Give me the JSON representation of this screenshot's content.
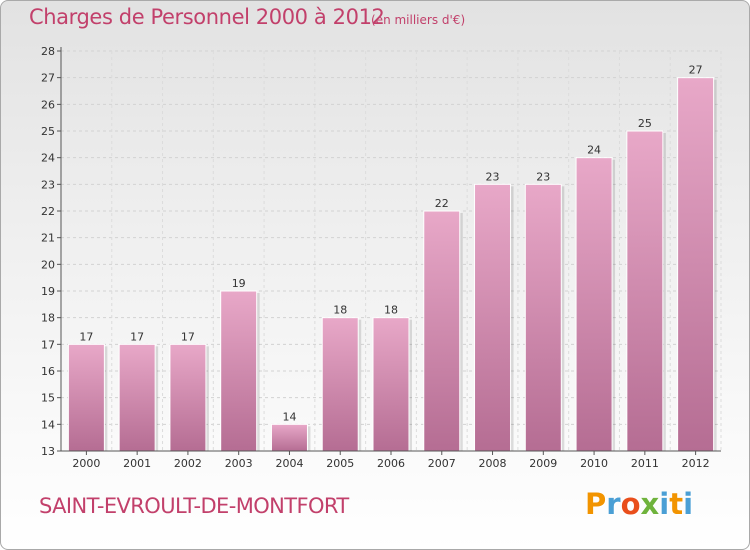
{
  "header": {
    "title": "Charges de Personnel 2000 à 2012",
    "subtitle": "(en milliers d'€)"
  },
  "footer": {
    "commune": "SAINT-EVROULT-DE-MONTFORT",
    "logo_letters": [
      "P",
      "r",
      "o",
      "x",
      "i",
      "t",
      "i"
    ],
    "logo_colors": [
      "#f29400",
      "#4a9fd5",
      "#e94e1b",
      "#6fb33c",
      "#4a9fd5",
      "#f29400",
      "#4a9fd5"
    ]
  },
  "chart_data": {
    "type": "bar",
    "categories": [
      "2000",
      "2001",
      "2002",
      "2003",
      "2004",
      "2005",
      "2006",
      "2007",
      "2008",
      "2009",
      "2010",
      "2011",
      "2012"
    ],
    "values": [
      17,
      17,
      17,
      19,
      14,
      18,
      18,
      22,
      23,
      23,
      24,
      25,
      27
    ],
    "data_labels": [
      "17",
      "17",
      "17",
      "19",
      "14",
      "18",
      "18",
      "22",
      "23",
      "23",
      "24",
      "25",
      "27"
    ],
    "y_ticks": [
      "13",
      "14",
      "15",
      "16",
      "17",
      "18",
      "19",
      "20",
      "21",
      "22",
      "23",
      "24",
      "25",
      "26",
      "27",
      "28"
    ],
    "ylim": [
      13,
      28
    ],
    "grid": true,
    "bar_color_top": "#e8a8c8",
    "bar_color_bottom": "#b56d93",
    "axis_color": "#555555"
  }
}
